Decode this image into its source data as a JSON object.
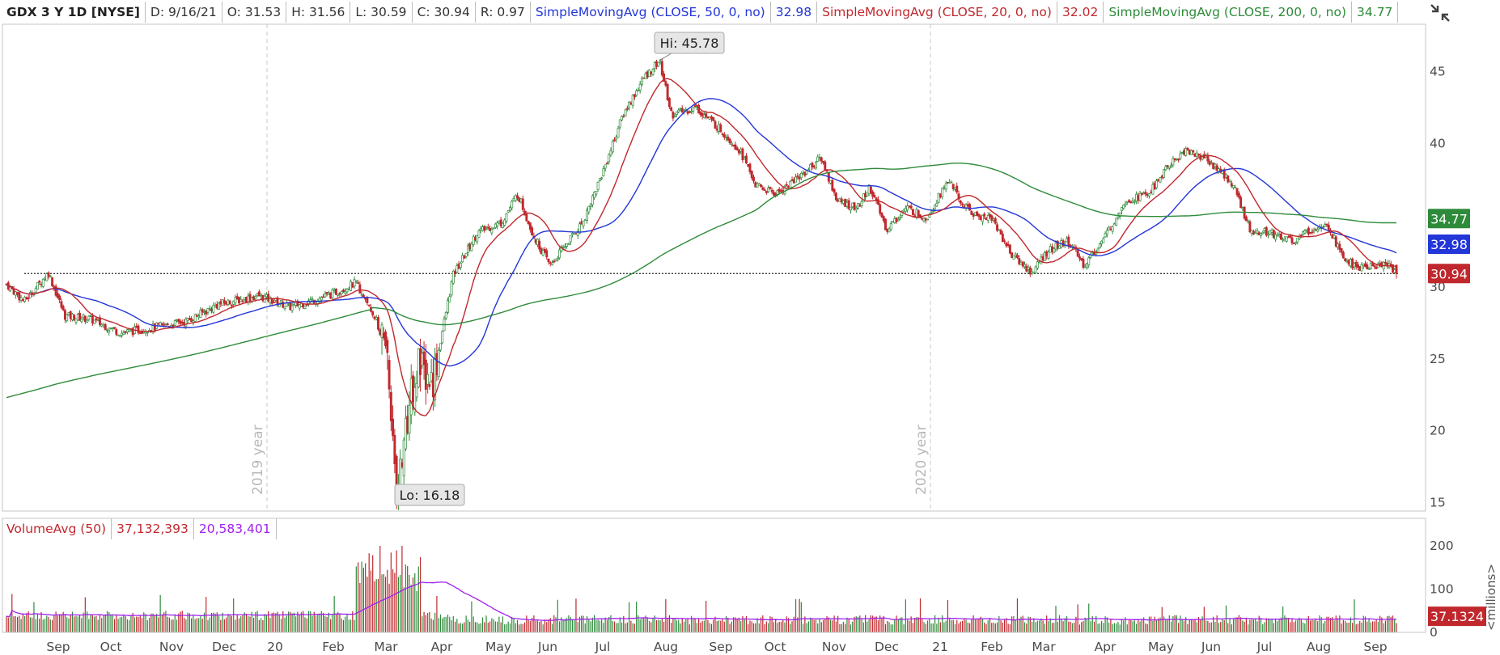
{
  "header": {
    "symbol": "GDX 3 Y 1D [NYSE]",
    "date": "D: 9/16/21",
    "open": "O: 31.53",
    "high": "H: 31.56",
    "low": "L: 30.59",
    "close": "C: 30.94",
    "range": "R: 0.97",
    "sma50_label": "SimpleMovingAvg (CLOSE, 50, 0, no)",
    "sma50_value": "32.98",
    "sma20_label": "SimpleMovingAvg (CLOSE, 20, 0, no)",
    "sma20_value": "32.02",
    "sma200_label": "SimpleMovingAvg (CLOSE, 200, 0, no)",
    "sma200_value": "34.77"
  },
  "colors": {
    "up": "#2e8b3a",
    "down": "#c0282d",
    "sma50": "#2336d8",
    "sma20": "#c0282d",
    "sma200": "#2e8b3a",
    "volume_avg": "#a020f0",
    "tag_green": "#2e8b3a",
    "tag_blue": "#2336d8",
    "tag_red": "#c0282d"
  },
  "price_tags": [
    {
      "value": "34.77",
      "color_key": "tag_green"
    },
    {
      "value": "32.98",
      "color_key": "tag_blue"
    },
    {
      "value": "30.94",
      "color_key": "tag_red"
    }
  ],
  "callouts": {
    "high": "Hi: 45.78",
    "low": "Lo: 16.18"
  },
  "year_labels": [
    "2019 year",
    "2020 year"
  ],
  "volume": {
    "label": "VolumeAvg (50)",
    "value1": "37,132,393",
    "value2": "20,583,401",
    "tag": "37.1324",
    "unit_label": "<millions>",
    "ticks": [
      "200",
      "100",
      "0"
    ]
  },
  "toolbar": {
    "crosshair_icon": "crosshair-cursor-icon"
  },
  "chart_data": {
    "type": "candlestick",
    "symbol": "GDX",
    "price_axis": {
      "ticks": [
        15,
        20,
        25,
        30,
        35,
        40,
        45
      ],
      "range": [
        14.4,
        48.3
      ]
    },
    "volume_axis": {
      "ticks": [
        0,
        100,
        200
      ],
      "unit": "millions"
    },
    "x_ticks": [
      "Sep",
      "Oct",
      "Nov",
      "Dec",
      "20",
      "Feb",
      "Mar",
      "Apr",
      "May",
      "Jun",
      "Jul",
      "Aug",
      "Sep",
      "Oct",
      "Nov",
      "Dec",
      "21",
      "Feb",
      "Mar",
      "Apr",
      "May",
      "Jun",
      "Jul",
      "Aug",
      "Sep"
    ],
    "support_level": 30.94,
    "high": 45.78,
    "low": 16.18,
    "last": {
      "open": 31.53,
      "high": 31.56,
      "low": 30.59,
      "close": 30.94
    },
    "price_path_monthly": [
      {
        "x": "2019-08",
        "close": 29.0
      },
      {
        "x": "2019-09",
        "close": 28.5
      },
      {
        "x": "2019-10",
        "close": 28.0
      },
      {
        "x": "2019-11",
        "close": 26.8
      },
      {
        "x": "2019-12",
        "close": 28.7
      },
      {
        "x": "2020-01",
        "close": 28.5
      },
      {
        "x": "2020-02",
        "close": 28.3
      },
      {
        "x": "2020-03",
        "close": 22.0
      },
      {
        "x": "2020-04",
        "close": 33.0
      },
      {
        "x": "2020-05",
        "close": 35.0
      },
      {
        "x": "2020-06",
        "close": 34.5
      },
      {
        "x": "2020-07",
        "close": 41.5
      },
      {
        "x": "2020-08",
        "close": 42.0
      },
      {
        "x": "2020-09",
        "close": 39.5
      },
      {
        "x": "2020-10",
        "close": 38.0
      },
      {
        "x": "2020-11",
        "close": 34.0
      },
      {
        "x": "2020-12",
        "close": 37.0
      },
      {
        "x": "2021-01",
        "close": 33.5
      },
      {
        "x": "2021-02",
        "close": 31.5
      },
      {
        "x": "2021-03",
        "close": 33.0
      },
      {
        "x": "2021-04",
        "close": 36.0
      },
      {
        "x": "2021-05",
        "close": 39.5
      },
      {
        "x": "2021-06",
        "close": 33.5
      },
      {
        "x": "2021-07",
        "close": 34.0
      },
      {
        "x": "2021-08",
        "close": 31.5
      },
      {
        "x": "2021-09-16",
        "close": 30.94
      }
    ],
    "series": [
      {
        "name": "SimpleMovingAvg (CLOSE, 50, 0, no)",
        "last": 32.98
      },
      {
        "name": "SimpleMovingAvg (CLOSE, 20, 0, no)",
        "last": 32.02
      },
      {
        "name": "SimpleMovingAvg (CLOSE, 200, 0, no)",
        "last": 34.77
      },
      {
        "name": "VolumeAvg (50)",
        "last": 37132393
      }
    ]
  }
}
